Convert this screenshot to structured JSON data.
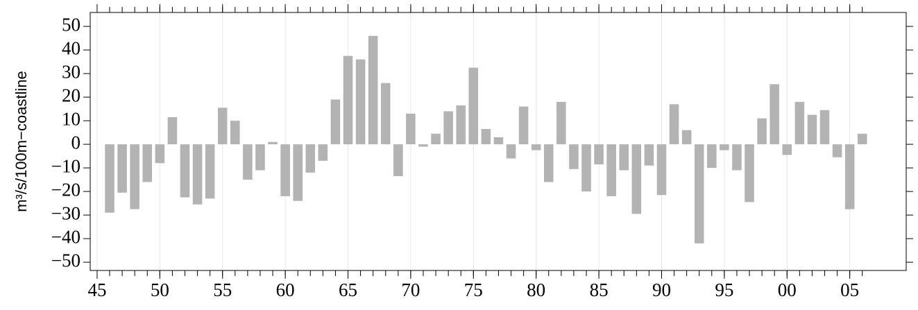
{
  "chart_data": {
    "type": "bar",
    "y_label": "m³/s/100m−coastline",
    "x": [
      1946,
      1947,
      1948,
      1949,
      1950,
      1951,
      1952,
      1953,
      1954,
      1955,
      1956,
      1957,
      1958,
      1959,
      1960,
      1961,
      1962,
      1963,
      1964,
      1965,
      1966,
      1967,
      1968,
      1969,
      1970,
      1971,
      1972,
      1973,
      1974,
      1975,
      1976,
      1977,
      1978,
      1979,
      1980,
      1981,
      1982,
      1983,
      1984,
      1985,
      1986,
      1987,
      1988,
      1989,
      1990,
      1991,
      1992,
      1993,
      1994,
      1995,
      1996,
      1997,
      1998,
      1999,
      2000,
      2001,
      2002,
      2003,
      2004,
      2005,
      2006
    ],
    "values": [
      -29,
      -20.5,
      -27.5,
      -16,
      -8,
      11.5,
      -22.5,
      -25.5,
      -23,
      15.5,
      10,
      -15,
      -11,
      1,
      -22,
      -24,
      -12,
      -7,
      19,
      37.5,
      36,
      46,
      26,
      -13.5,
      13,
      -1,
      4.5,
      14,
      16.5,
      32.5,
      6.5,
      3,
      -6,
      16,
      -2.5,
      -16,
      18,
      -10.5,
      -20,
      -8.5,
      -22,
      -11,
      -29.5,
      -9,
      -21.5,
      17,
      6,
      -42,
      -10,
      -2.5,
      -11,
      -24.5,
      11,
      25.5,
      -4.5,
      18,
      12.5,
      14.5,
      -5.5,
      -27.5,
      4.5
    ],
    "color": "#b3b3b3",
    "xlim": [
      1944.45,
      2009.5
    ],
    "xticks": [
      {
        "value": 1945,
        "label": "45"
      },
      {
        "value": 1950,
        "label": "50"
      },
      {
        "value": 1955,
        "label": "55"
      },
      {
        "value": 1960,
        "label": "60"
      },
      {
        "value": 1965,
        "label": "65"
      },
      {
        "value": 1970,
        "label": "70"
      },
      {
        "value": 1975,
        "label": "75"
      },
      {
        "value": 1980,
        "label": "80"
      },
      {
        "value": 1985,
        "label": "85"
      },
      {
        "value": 1990,
        "label": "90"
      },
      {
        "value": 1995,
        "label": "95"
      },
      {
        "value": 2000,
        "label": "00"
      },
      {
        "value": 2005,
        "label": "05"
      }
    ],
    "ylim": [
      -53.5,
      55.9
    ],
    "yticks": [
      {
        "value": -50,
        "label": "−50"
      },
      {
        "value": -40,
        "label": "−40"
      },
      {
        "value": -30,
        "label": "−30"
      },
      {
        "value": -20,
        "label": "−20"
      },
      {
        "value": -10,
        "label": "−10"
      },
      0,
      10,
      20,
      30,
      40,
      50
    ],
    "grid": true
  }
}
